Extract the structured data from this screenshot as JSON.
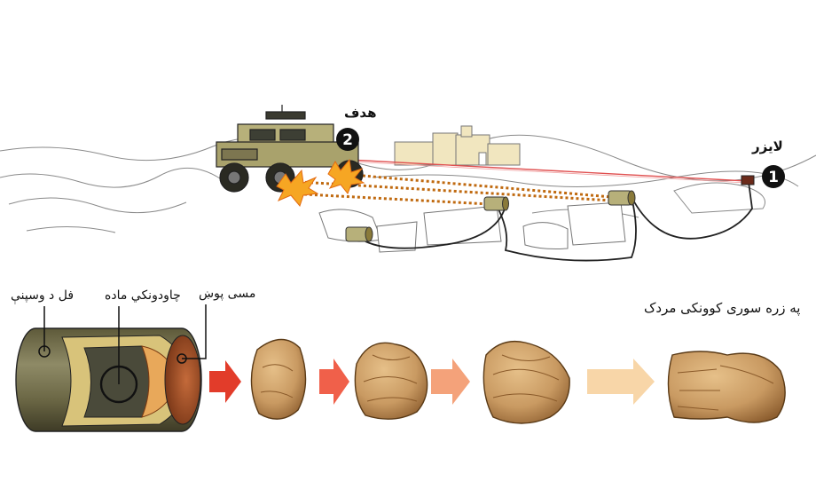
{
  "labels": {
    "target": "هدف",
    "laser": "لايزر",
    "cylinder": "فل د وسپنې",
    "explosive": "چاودونکي ماده",
    "liner": "مسی پوښ",
    "penetrator": "په زره سوری کوونکی مردک"
  },
  "markers": {
    "step1": "1",
    "step2": "2"
  },
  "icons": {
    "vehicle": "humvee-icon",
    "building": "building-icon",
    "charge": "cylinder-charge-icon",
    "arrow": "right-arrow-icon"
  },
  "colors": {
    "laser_beam": "#e05050",
    "jet_path": "#c06a10",
    "explosion": "#f6a623",
    "vehicle": "#b7b07a",
    "building": "#f1e6bf",
    "copper": "#c97a3a",
    "slug": "#c99a62",
    "arrow_1": "#e23c2a",
    "arrow_2": "#f0604a",
    "arrow_3": "#f4a27a",
    "arrow_4": "#f8d6a8"
  }
}
